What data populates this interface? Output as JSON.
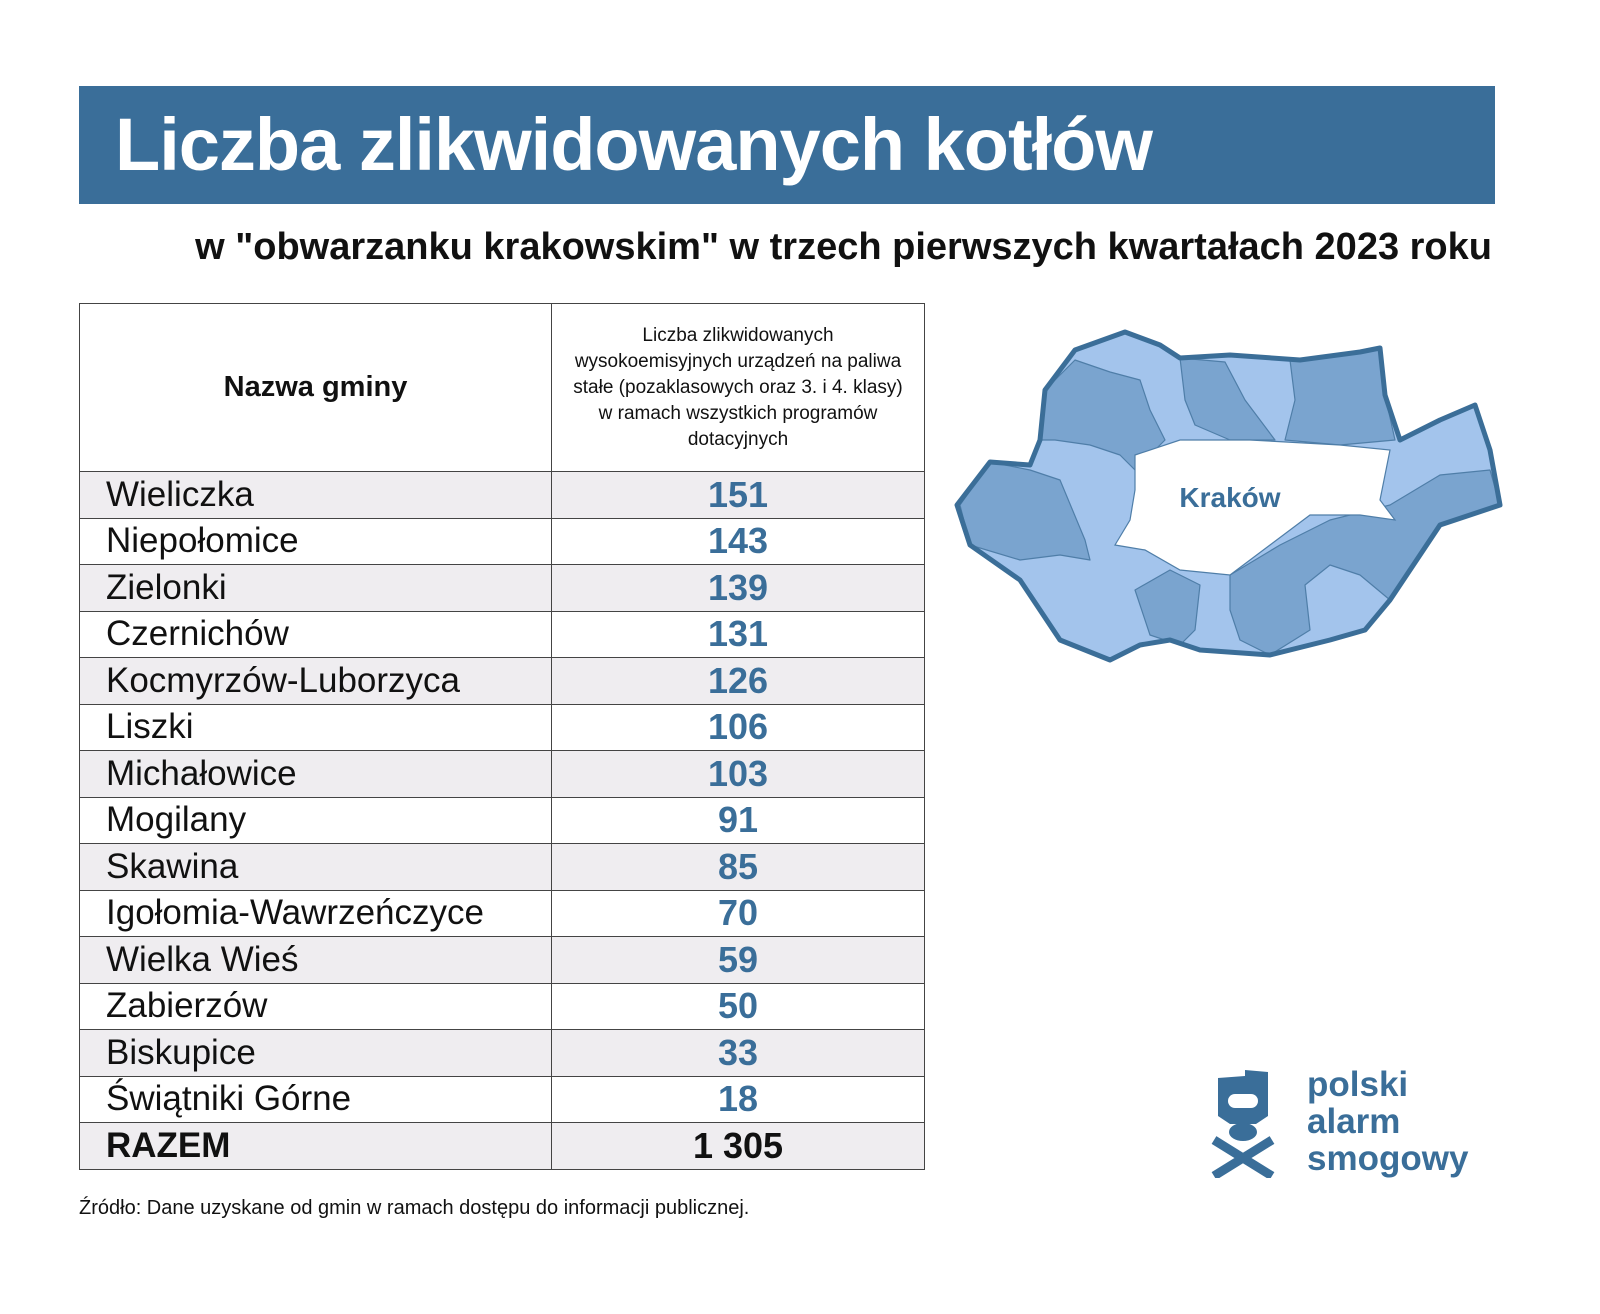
{
  "header": {
    "title": "Liczba zlikwidowanych kotłów",
    "subtitle": "w \"obwarzanku krakowskim\" w trzech pierwszych kwartałach 2023 roku",
    "accent_color": "#3a6e99"
  },
  "table": {
    "columns": [
      "Nazwa gminy",
      "Liczba zlikwidowanych wysokoemisyjnych urządzeń na paliwa stałe (pozaklasowych oraz 3. i 4. klasy) w ramach wszystkich programów dotacyjnych"
    ],
    "rows": [
      {
        "name": "Wieliczka",
        "value": "151"
      },
      {
        "name": "Niepołomice",
        "value": "143"
      },
      {
        "name": "Zielonki",
        "value": "139"
      },
      {
        "name": "Czernichów",
        "value": "131"
      },
      {
        "name": "Kocmyrzów-Luborzyca",
        "value": "126"
      },
      {
        "name": "Liszki",
        "value": "106"
      },
      {
        "name": "Michałowice",
        "value": "103"
      },
      {
        "name": "Mogilany",
        "value": "91"
      },
      {
        "name": "Skawina",
        "value": "85"
      },
      {
        "name": "Igołomia-Wawrzeńczyce",
        "value": "70"
      },
      {
        "name": "Wielka Wieś",
        "value": "59"
      },
      {
        "name": "Zabierzów",
        "value": "50"
      },
      {
        "name": "Biskupice",
        "value": "33"
      },
      {
        "name": "Świątniki Górne",
        "value": "18"
      }
    ],
    "total": {
      "name": "RAZEM",
      "value": "1 305"
    }
  },
  "map": {
    "center_label": "Kraków",
    "colors": {
      "light": "#a3c4ec",
      "dark": "#7aa4cf",
      "border": "#3b6e98"
    }
  },
  "logo": {
    "line1": "polski",
    "line2": "alarm",
    "line3": "smogowy",
    "icon": "smog-mask-icon"
  },
  "source": "Źródło: Dane uzyskane od gmin w ramach dostępu do informacji publicznej."
}
